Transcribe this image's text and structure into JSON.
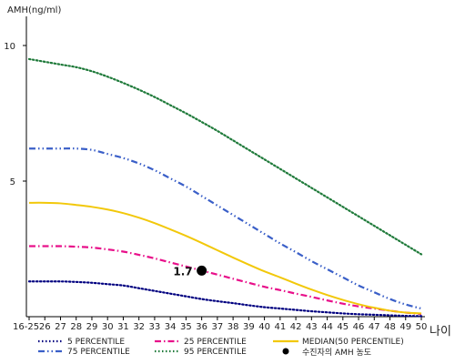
{
  "chart_data": {
    "type": "line",
    "ylabel": "AMH(ng/ml)",
    "xlabel": "나이",
    "categories": [
      "16-25",
      "26",
      "27",
      "28",
      "29",
      "30",
      "31",
      "32",
      "33",
      "34",
      "35",
      "36",
      "37",
      "38",
      "39",
      "40",
      "41",
      "42",
      "43",
      "44",
      "45",
      "46",
      "47",
      "48",
      "49",
      "50"
    ],
    "ylim": [
      0,
      11
    ],
    "yticks": [
      5,
      10
    ],
    "grid": false,
    "series": [
      {
        "name": "5 PERCENTILE",
        "color": "#000080",
        "dash": "dotted",
        "values": [
          1.3,
          1.3,
          1.3,
          1.28,
          1.25,
          1.2,
          1.15,
          1.05,
          0.95,
          0.85,
          0.75,
          0.65,
          0.57,
          0.5,
          0.42,
          0.35,
          0.3,
          0.25,
          0.2,
          0.16,
          0.12,
          0.09,
          0.07,
          0.05,
          0.03,
          0.02
        ]
      },
      {
        "name": "25 PERCENTILE",
        "color": "#e8108a",
        "dash": "dashdot",
        "values": [
          2.6,
          2.6,
          2.6,
          2.58,
          2.55,
          2.48,
          2.4,
          2.28,
          2.15,
          2.0,
          1.85,
          1.7,
          1.55,
          1.4,
          1.25,
          1.1,
          0.98,
          0.85,
          0.73,
          0.6,
          0.48,
          0.38,
          0.3,
          0.22,
          0.15,
          0.1
        ]
      },
      {
        "name": "MEDIAN(50 PERCENTILE)",
        "color": "#f2c80a",
        "dash": "solid",
        "values": [
          4.2,
          4.2,
          4.18,
          4.12,
          4.05,
          3.95,
          3.82,
          3.65,
          3.45,
          3.22,
          2.98,
          2.72,
          2.45,
          2.18,
          1.92,
          1.67,
          1.45,
          1.22,
          1.0,
          0.8,
          0.62,
          0.46,
          0.33,
          0.22,
          0.15,
          0.12
        ]
      },
      {
        "name": "75 PERCENTILE",
        "color": "#3a5fc8",
        "dash": "dashdotdot",
        "values": [
          6.2,
          6.2,
          6.2,
          6.2,
          6.15,
          6.0,
          5.85,
          5.65,
          5.4,
          5.1,
          4.8,
          4.45,
          4.1,
          3.75,
          3.4,
          3.05,
          2.7,
          2.38,
          2.05,
          1.75,
          1.45,
          1.15,
          0.9,
          0.65,
          0.45,
          0.3
        ]
      },
      {
        "name": "95 PERCENTILE",
        "color": "#1f7a3a",
        "dash": "dotted",
        "values": [
          9.5,
          9.4,
          9.3,
          9.2,
          9.05,
          8.85,
          8.62,
          8.37,
          8.1,
          7.8,
          7.5,
          7.18,
          6.85,
          6.5,
          6.15,
          5.8,
          5.45,
          5.1,
          4.75,
          4.4,
          4.05,
          3.7,
          3.35,
          3.0,
          2.65,
          2.3
        ]
      }
    ],
    "point": {
      "x": "36",
      "y": 1.7,
      "label": "1.7",
      "legend": "수진자의 AMH 농도"
    }
  }
}
